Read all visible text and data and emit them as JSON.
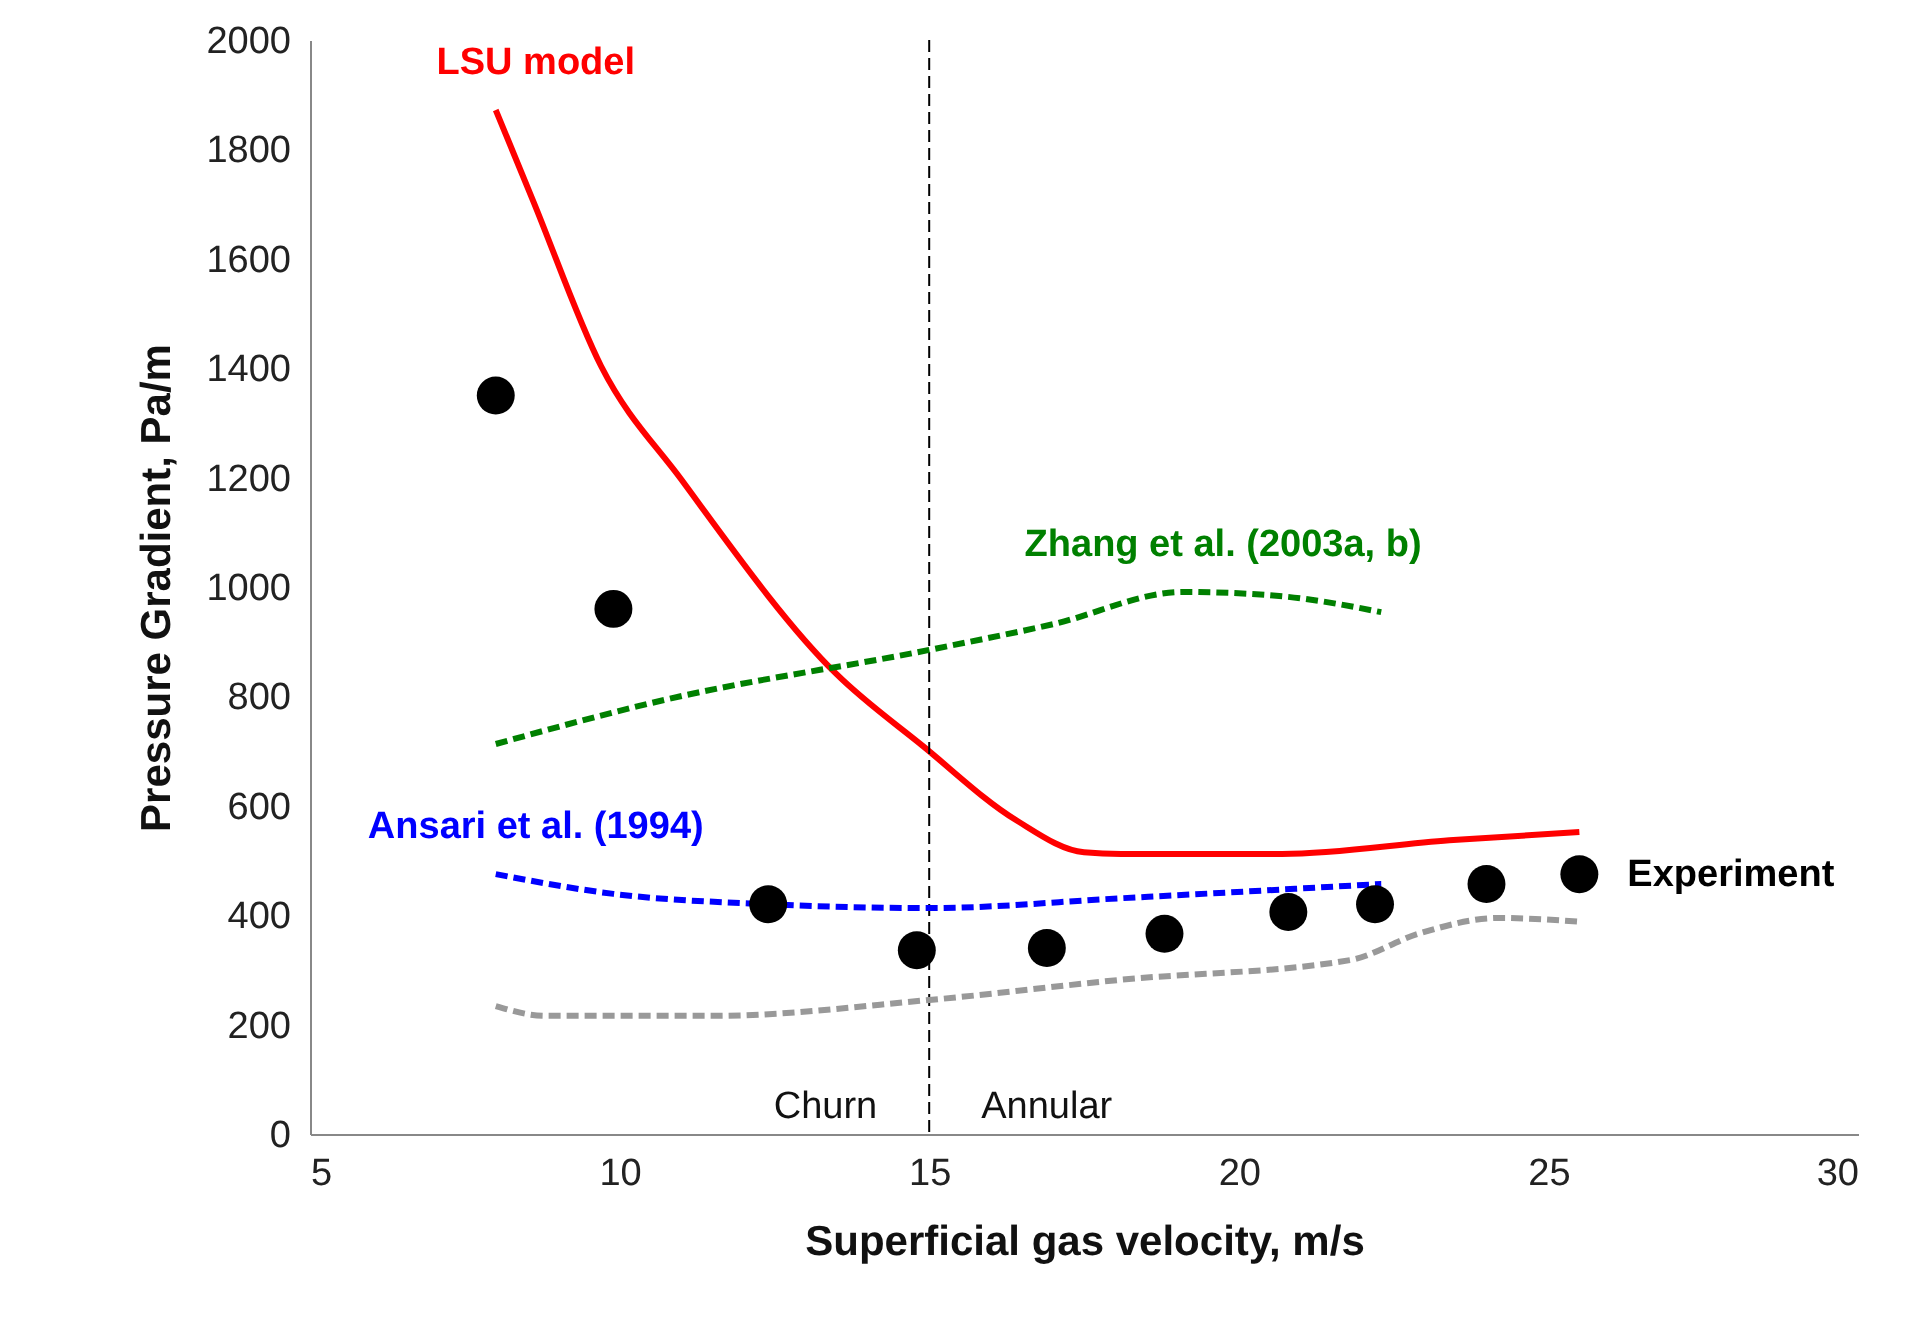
{
  "chart_data": {
    "type": "line",
    "xlabel": "Superficial gas velocity, m/s",
    "ylabel": "Pressure Gradient, Pa/m",
    "xlim": [
      5,
      30
    ],
    "xticks": [
      5,
      10,
      15,
      20,
      25,
      30
    ],
    "ylim": [
      0,
      2000
    ],
    "yticks": [
      0,
      200,
      400,
      600,
      800,
      1000,
      1200,
      1400,
      1600,
      1800,
      2000
    ],
    "grid": false,
    "series": [
      {
        "name": "LSU model",
        "color": "#ff0000",
        "line_style": "solid",
        "x": [
          8.0,
          8.6,
          9.7,
          11.0,
          13.5,
          14.9,
          16.4,
          17.5,
          18.1,
          20.7,
          23.4,
          25.5
        ],
        "values": [
          1872,
          1707,
          1404,
          1196,
          841,
          709,
          574,
          515,
          512,
          512,
          537,
          552
        ]
      },
      {
        "name": "Zhang et al. (2003a, b)",
        "color": "#008000",
        "line_style": "dashed",
        "x": [
          8.0,
          10.7,
          15.0,
          17.0,
          19.1,
          20.7,
          22.3
        ],
        "values": [
          713,
          793,
          885,
          932,
          991,
          983,
          954
        ]
      },
      {
        "name": "Ansari et al. (1994)",
        "color": "#0000ff",
        "line_style": "dashed",
        "x": [
          8.0,
          9.9,
          12.4,
          15.0,
          18.1,
          22.3
        ],
        "values": [
          475,
          439,
          420,
          413,
          431,
          457
        ]
      },
      {
        "color": "#999999",
        "line_style": "dashed",
        "x": [
          8.0,
          8.8,
          11.5,
          15.0,
          18.1,
          21.8,
          22.9,
          24.2,
          25.5
        ],
        "values": [
          234,
          216,
          216,
          245,
          282,
          318,
          366,
          395,
          388
        ]
      },
      {
        "name": "Experiment",
        "type": "scatter",
        "color": "#000000",
        "marker": "circle",
        "x": [
          8.0,
          9.9,
          12.4,
          14.8,
          16.9,
          18.8,
          20.8,
          22.2,
          24.0,
          25.5
        ],
        "values": [
          1350,
          960,
          420,
          336,
          340,
          366,
          406,
          420,
          457,
          475
        ]
      }
    ],
    "ref_lines": [
      {
        "axis": "x",
        "value": 15,
        "color": "#000000",
        "line_style": "dashed"
      }
    ],
    "annotations": [
      "Churn",
      "Annular"
    ]
  }
}
